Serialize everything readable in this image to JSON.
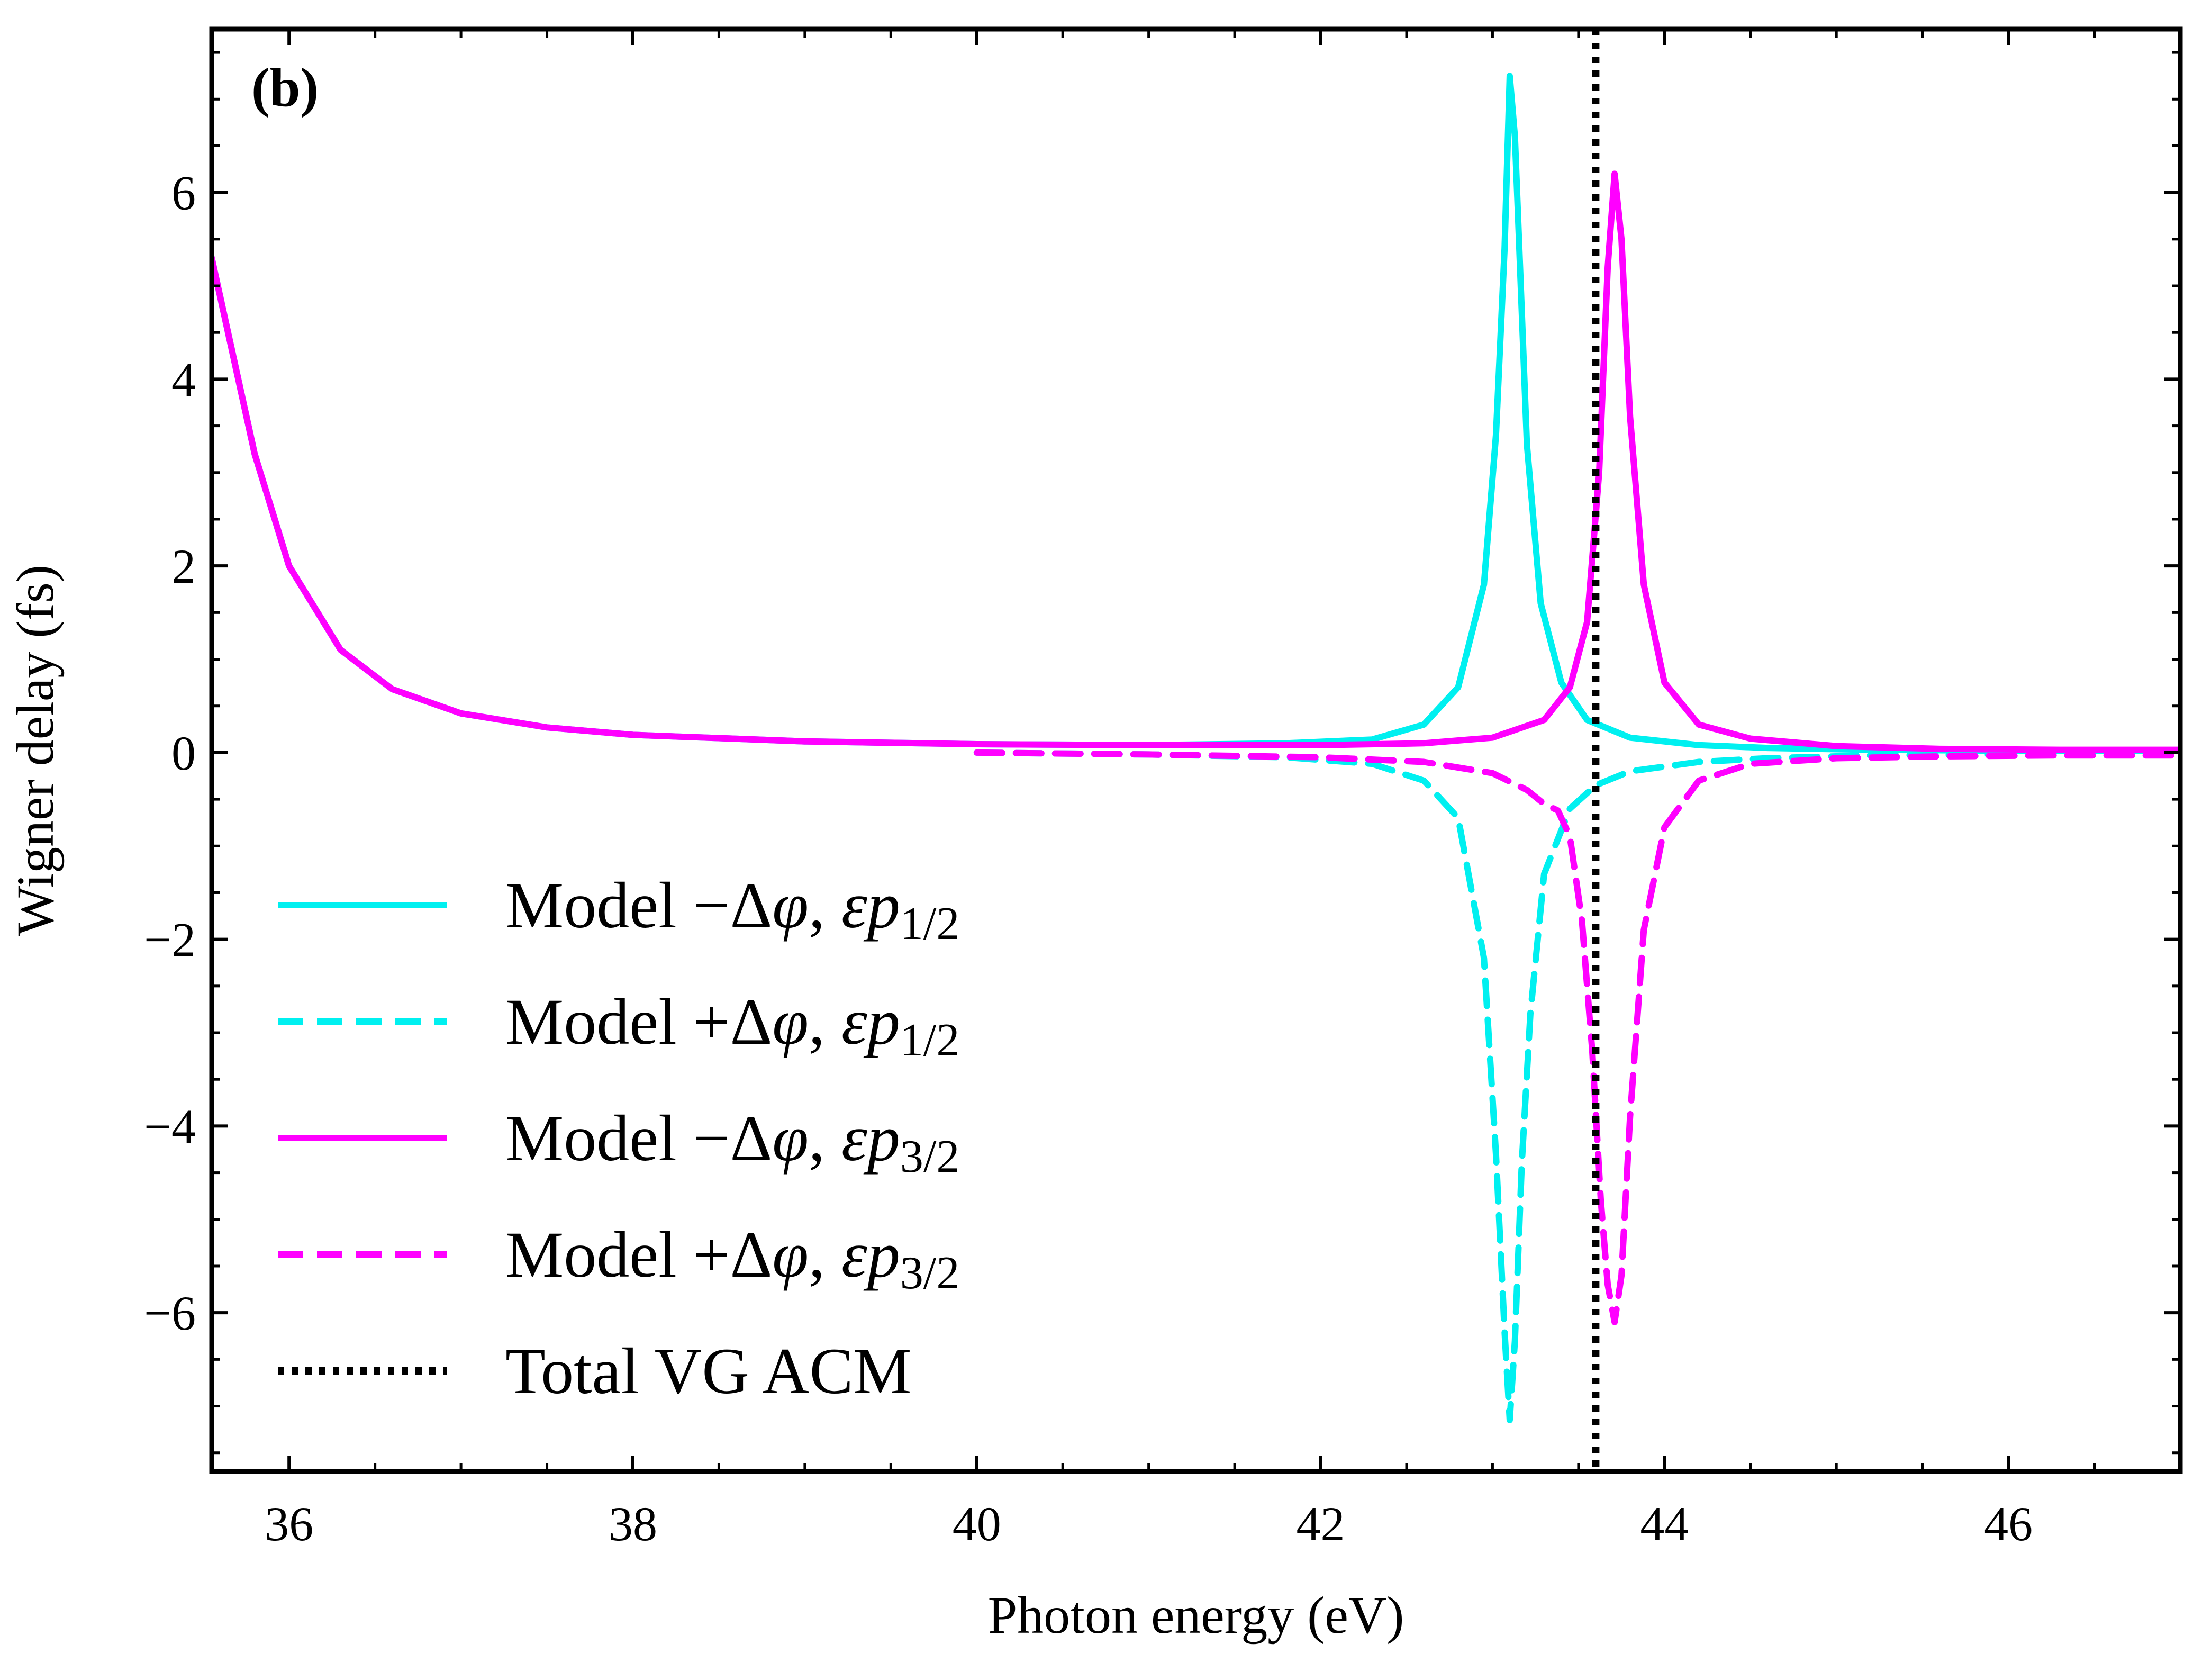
{
  "chart_data": {
    "type": "line",
    "panel_label": "(b)",
    "xlabel": "Photon energy (eV)",
    "ylabel": "Wigner delay (fs)",
    "xlim": [
      35.55,
      47.0
    ],
    "ylim": [
      -7.7,
      7.75
    ],
    "xticks": [
      36,
      38,
      40,
      42,
      44,
      46
    ],
    "xtick_labels": [
      "36",
      "38",
      "40",
      "42",
      "44",
      "46"
    ],
    "yticks": [
      -6,
      -4,
      -2,
      0,
      2,
      4,
      6
    ],
    "ytick_labels": [
      "−6",
      "−4",
      "−2",
      "0",
      "2",
      "4",
      "6"
    ],
    "legend_position": "lower-left",
    "series": [
      {
        "name": "Model −Δφ, εp1/2",
        "label_parts": [
          "Model −Δ",
          "φ",
          ", ",
          "εp",
          "1/2"
        ],
        "color": "#00f0f0",
        "style": "solid",
        "x": [
          35.55,
          35.8,
          36.0,
          36.3,
          36.6,
          37.0,
          37.5,
          38.0,
          39.0,
          40.0,
          41.0,
          41.8,
          42.3,
          42.6,
          42.8,
          42.95,
          43.02,
          43.07,
          43.1,
          43.13,
          43.16,
          43.2,
          43.28,
          43.4,
          43.55,
          43.8,
          44.2,
          44.6,
          45.2,
          46.0,
          47.0
        ],
        "values": [
          5.3,
          3.2,
          2.0,
          1.1,
          0.68,
          0.42,
          0.27,
          0.19,
          0.12,
          0.09,
          0.08,
          0.1,
          0.14,
          0.3,
          0.7,
          1.8,
          3.4,
          5.4,
          7.25,
          6.6,
          5.2,
          3.3,
          1.6,
          0.75,
          0.35,
          0.16,
          0.08,
          0.05,
          0.03,
          0.02,
          0.02
        ]
      },
      {
        "name": "Model +Δφ, εp1/2",
        "label_parts": [
          "Model +Δ",
          "φ",
          ", ",
          "εp",
          "1/2"
        ],
        "color": "#00f0f0",
        "style": "dashed",
        "x": [
          40.0,
          41.0,
          41.8,
          42.3,
          42.6,
          42.8,
          42.95,
          43.02,
          43.07,
          43.1,
          43.13,
          43.17,
          43.22,
          43.3,
          43.45,
          43.6,
          43.8,
          44.2,
          44.6,
          45.2,
          46.0
        ],
        "values": [
          0.0,
          -0.02,
          -0.05,
          -0.12,
          -0.3,
          -0.7,
          -2.2,
          -4.3,
          -6.2,
          -7.15,
          -6.3,
          -4.4,
          -2.8,
          -1.3,
          -0.6,
          -0.35,
          -0.2,
          -0.1,
          -0.06,
          -0.03,
          -0.02
        ]
      },
      {
        "name": "Model −Δφ, εp3/2",
        "label_parts": [
          "Model −Δ",
          "φ",
          ", ",
          "εp",
          "3/2"
        ],
        "color": "#ff00ff",
        "style": "solid",
        "x": [
          35.55,
          35.8,
          36.0,
          36.3,
          36.6,
          37.0,
          37.5,
          38.0,
          39.0,
          40.0,
          41.0,
          42.0,
          42.6,
          43.0,
          43.3,
          43.45,
          43.55,
          43.62,
          43.67,
          43.71,
          43.75,
          43.8,
          43.88,
          44.0,
          44.2,
          44.5,
          45.0,
          45.6,
          46.3,
          47.0
        ],
        "values": [
          5.3,
          3.2,
          2.0,
          1.1,
          0.68,
          0.42,
          0.27,
          0.19,
          0.12,
          0.09,
          0.08,
          0.08,
          0.1,
          0.16,
          0.35,
          0.7,
          1.4,
          3.0,
          5.2,
          6.2,
          5.5,
          3.6,
          1.8,
          0.75,
          0.3,
          0.15,
          0.07,
          0.04,
          0.03,
          0.03
        ]
      },
      {
        "name": "Model +Δφ, εp3/2",
        "label_parts": [
          "Model +Δ",
          "φ",
          ", ",
          "εp",
          "3/2"
        ],
        "color": "#ff00ff",
        "style": "dashed",
        "x": [
          40.0,
          41.0,
          42.0,
          42.6,
          43.0,
          43.2,
          43.3,
          43.38,
          43.45,
          43.52,
          43.58,
          43.63,
          43.67,
          43.71,
          43.75,
          43.8,
          43.88,
          44.0,
          44.2,
          44.5,
          45.0,
          45.6,
          46.3,
          47.0
        ],
        "values": [
          0.0,
          -0.02,
          -0.05,
          -0.1,
          -0.22,
          -0.4,
          -0.55,
          -0.62,
          -0.9,
          -1.8,
          -3.2,
          -4.8,
          -5.7,
          -6.1,
          -5.6,
          -3.9,
          -1.9,
          -0.8,
          -0.3,
          -0.12,
          -0.06,
          -0.04,
          -0.03,
          -0.03
        ]
      },
      {
        "name": "Total VG ACM",
        "label_parts": [
          "Total VG ACM"
        ],
        "color": "#000000",
        "style": "dotted",
        "vertical_x": 43.6
      }
    ]
  }
}
